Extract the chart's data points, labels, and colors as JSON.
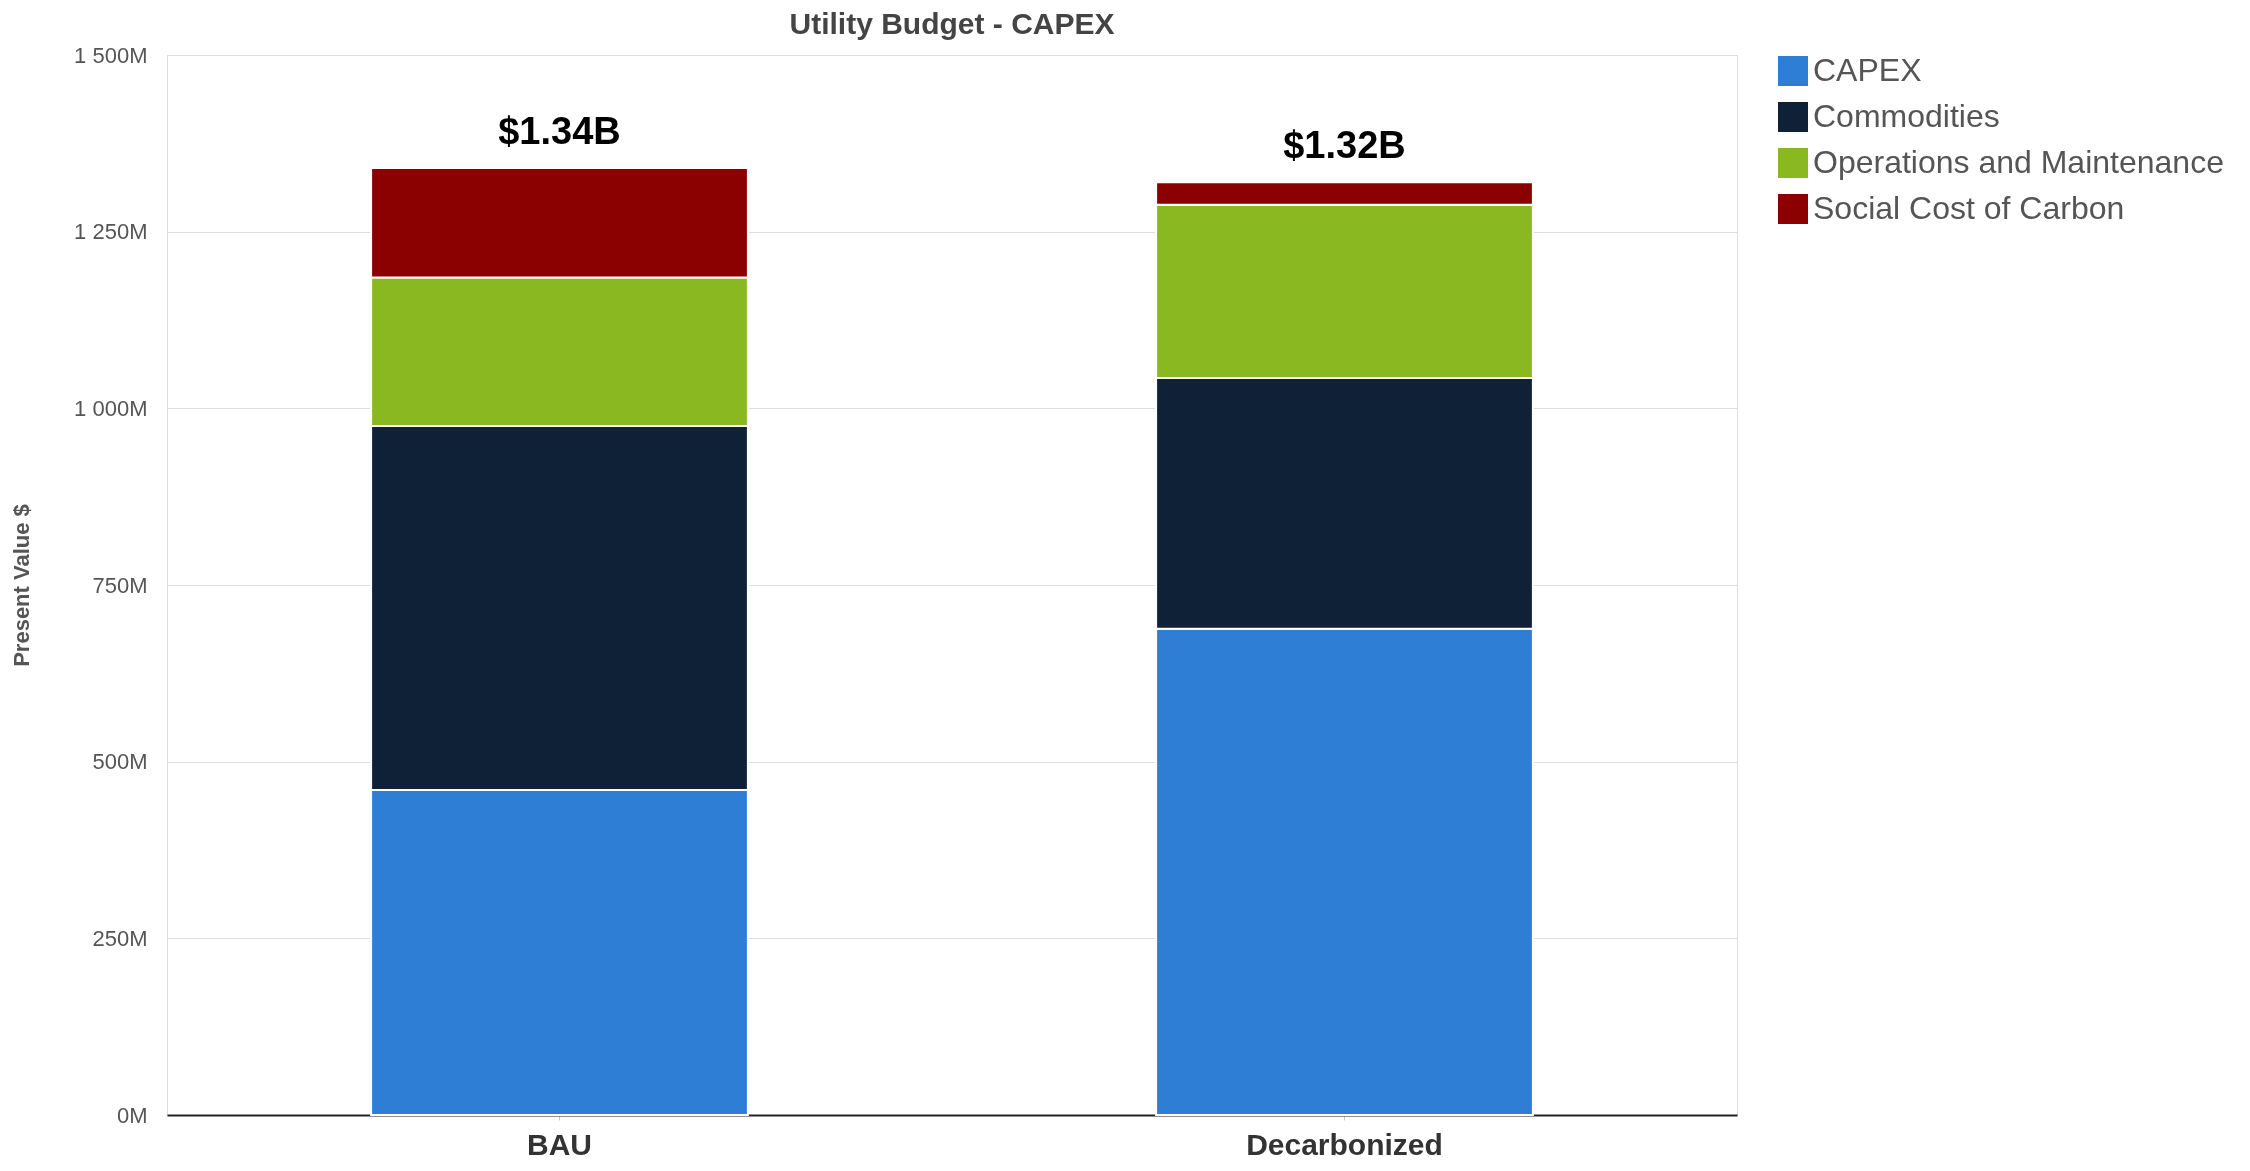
{
  "chart_data": {
    "type": "bar",
    "stacked": true,
    "title": "Utility Budget - CAPEX",
    "ylabel": "Present Value $",
    "categories": [
      "BAU",
      "Decarbonized"
    ],
    "series": [
      {
        "name": "CAPEX",
        "color": "#2e7ed6",
        "values": [
          460,
          688
        ]
      },
      {
        "name": "Commodities",
        "color": "#0e2137",
        "values": [
          515,
          355
        ]
      },
      {
        "name": "Operations and Maintenance",
        "color": "#8ab820",
        "values": [
          210,
          245
        ]
      },
      {
        "name": "Social Cost of Carbon",
        "color": "#8b0000",
        "values": [
          155,
          32
        ]
      }
    ],
    "totals": [
      "$1.34B",
      "$1.32B"
    ],
    "ylim": [
      0,
      1500
    ],
    "yticks": [
      {
        "value": 0,
        "label": "0M"
      },
      {
        "value": 250,
        "label": "250M"
      },
      {
        "value": 500,
        "label": "500M"
      },
      {
        "value": 750,
        "label": "750M"
      },
      {
        "value": 1000,
        "label": "1 000M"
      },
      {
        "value": 1250,
        "label": "1 250M"
      },
      {
        "value": 1500,
        "label": "1 500M"
      }
    ],
    "grid": "y",
    "legend": "top right"
  }
}
